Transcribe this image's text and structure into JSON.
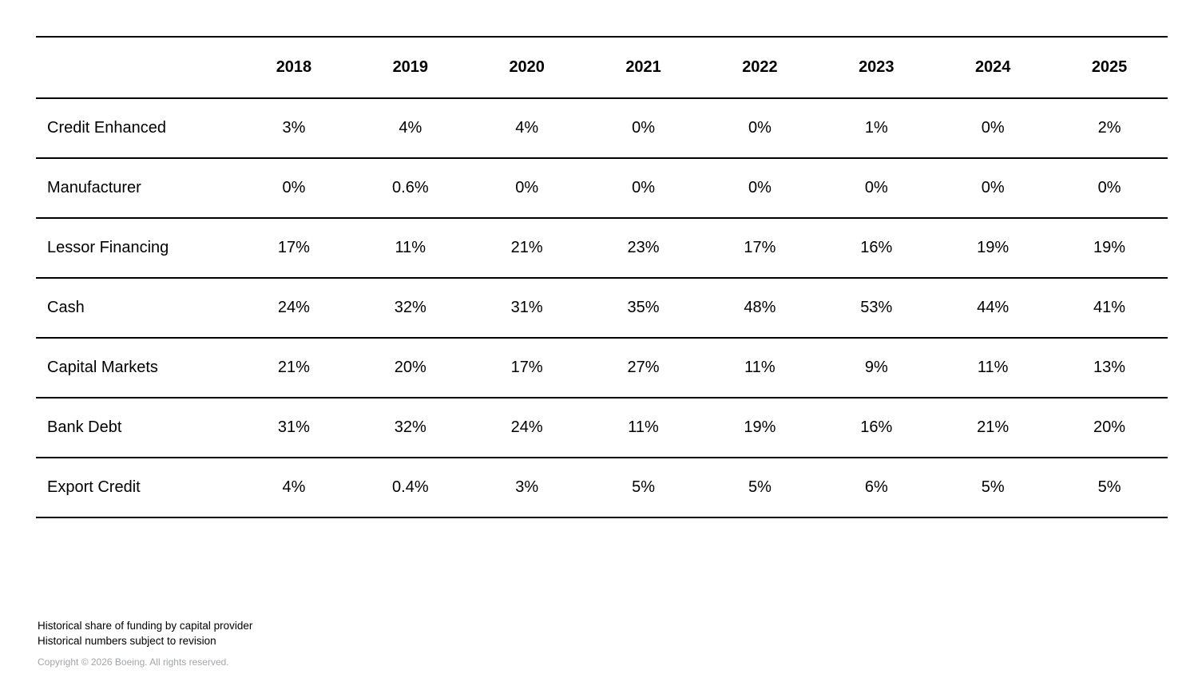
{
  "table": {
    "columns": [
      "2018",
      "2019",
      "2020",
      "2021",
      "2022",
      "2023",
      "2024",
      "2025"
    ],
    "rows": [
      {
        "label": "Credit Enhanced",
        "values": [
          "3%",
          "4%",
          "4%",
          "0%",
          "0%",
          "1%",
          "0%",
          "2%"
        ]
      },
      {
        "label": "Manufacturer",
        "values": [
          "0%",
          "0.6%",
          "0%",
          "0%",
          "0%",
          "0%",
          "0%",
          "0%"
        ]
      },
      {
        "label": "Lessor Financing",
        "values": [
          "17%",
          "11%",
          "21%",
          "23%",
          "17%",
          "16%",
          "19%",
          "19%"
        ]
      },
      {
        "label": "Cash",
        "values": [
          "24%",
          "32%",
          "31%",
          "35%",
          "48%",
          "53%",
          "44%",
          "41%"
        ]
      },
      {
        "label": "Capital Markets",
        "values": [
          "21%",
          "20%",
          "17%",
          "27%",
          "11%",
          "9%",
          "11%",
          "13%"
        ]
      },
      {
        "label": "Bank Debt",
        "values": [
          "31%",
          "32%",
          "24%",
          "11%",
          "19%",
          "16%",
          "21%",
          "20%"
        ]
      },
      {
        "label": "Export Credit",
        "values": [
          "4%",
          "0.4%",
          "3%",
          "5%",
          "5%",
          "6%",
          "5%",
          "5%"
        ]
      }
    ]
  },
  "footnotes": {
    "line1": "Historical share of funding by capital provider",
    "line2": "Historical numbers subject to revision",
    "copyright": "Copyright © 2026 Boeing. All rights reserved."
  },
  "colors": {
    "text": "#000000",
    "rule": "#000000",
    "copyright_gray": "#a1a5a9",
    "background": "#ffffff"
  },
  "chart_data": {
    "type": "table",
    "title": "Historical share of funding by capital provider",
    "subtitle": "Historical numbers subject to revision",
    "unit": "%",
    "categories": [
      "2018",
      "2019",
      "2020",
      "2021",
      "2022",
      "2023",
      "2024",
      "2025"
    ],
    "series": [
      {
        "name": "Credit Enhanced",
        "values": [
          3,
          4,
          4,
          0,
          0,
          1,
          0,
          2
        ]
      },
      {
        "name": "Manufacturer",
        "values": [
          0,
          0.6,
          0,
          0,
          0,
          0,
          0,
          0
        ]
      },
      {
        "name": "Lessor Financing",
        "values": [
          17,
          11,
          21,
          23,
          17,
          16,
          19,
          19
        ]
      },
      {
        "name": "Cash",
        "values": [
          24,
          32,
          31,
          35,
          48,
          53,
          44,
          41
        ]
      },
      {
        "name": "Capital Markets",
        "values": [
          21,
          20,
          17,
          27,
          11,
          9,
          11,
          13
        ]
      },
      {
        "name": "Bank Debt",
        "values": [
          31,
          32,
          24,
          11,
          19,
          16,
          21,
          20
        ]
      },
      {
        "name": "Export Credit",
        "values": [
          4,
          0.4,
          3,
          5,
          5,
          6,
          5,
          5
        ]
      }
    ]
  }
}
